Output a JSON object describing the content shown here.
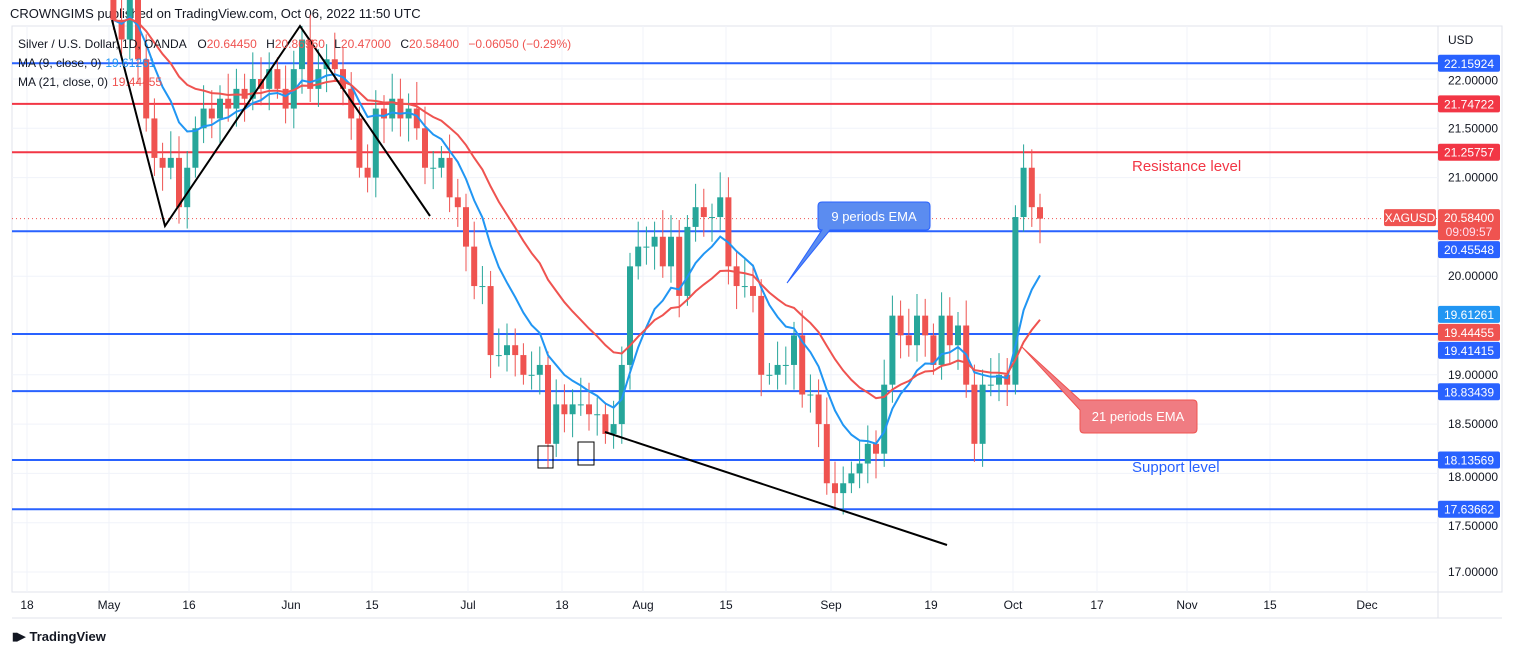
{
  "header": {
    "published": "CROWNGIMS published on TradingView.com, Oct 06, 2022 11:50 UTC"
  },
  "legend": {
    "symbol": "Silver / U.S. Dollar, 1D, OANDA",
    "o_label": "O",
    "o": "20.64450",
    "h_label": "H",
    "h": "20.86960",
    "l_label": "L",
    "l": "20.47000",
    "c_label": "C",
    "c": "20.58400",
    "change": "−0.06050 (−0.29%)",
    "ma9_label": "MA (9, close, 0)",
    "ma9_value": "19.61261",
    "ma21_label": "MA (21, close, 0)",
    "ma21_value": "19.44455"
  },
  "footer": {
    "brand": "TradingView",
    "logo": "17"
  },
  "colors": {
    "up": "#26a69a",
    "down": "#ef5350",
    "level_blue": "#2962ff",
    "level_red": "#f23645",
    "ma9": "#2196f3",
    "ma21": "#ef5350"
  },
  "chart_data": {
    "type": "candlestick",
    "symbol": "XAGUSD",
    "currency": "USD",
    "ylim": [
      16.75,
      22.45
    ],
    "y_ticks": [
      "22.00000",
      "21.50000",
      "21.00000",
      "20.00000",
      "19.00000",
      "18.50000",
      "18.00000",
      "17.50000",
      "17.00000"
    ],
    "y_tick_values": [
      22,
      21.5,
      21,
      20,
      19,
      18.5,
      18,
      17.5,
      17
    ],
    "x_ticks": [
      "18",
      "May",
      "16",
      "Jun",
      "15",
      "Jul",
      "18",
      "Aug",
      "15",
      "Sep",
      "19",
      "Oct",
      "17",
      "Nov",
      "15",
      "Dec"
    ],
    "first_open": 22.9,
    "close": [
      22.6,
      22.4,
      22.9,
      22.2,
      21.6,
      21.2,
      21.1,
      21.2,
      20.7,
      21.1,
      21.5,
      21.7,
      21.6,
      21.8,
      21.7,
      21.9,
      21.8,
      22.0,
      21.9,
      22.1,
      21.9,
      21.7,
      22.1,
      22.4,
      21.9,
      22.1,
      22.2,
      22.1,
      21.9,
      21.6,
      21.1,
      21.0,
      21.7,
      21.6,
      21.8,
      21.6,
      21.7,
      21.5,
      21.1,
      21.1,
      21.2,
      20.8,
      20.7,
      20.3,
      19.9,
      19.9,
      19.2,
      19.2,
      19.3,
      19.2,
      19.0,
      19.0,
      19.1,
      18.3,
      18.7,
      18.6,
      18.7,
      18.7,
      18.6,
      18.6,
      18.4,
      18.5,
      19.1,
      20.1,
      20.3,
      20.3,
      20.4,
      20.1,
      20.4,
      19.8,
      20.5,
      20.7,
      20.6,
      20.6,
      20.8,
      20.1,
      19.9,
      19.9,
      19.8,
      19.0,
      19.0,
      19.1,
      19.1,
      19.4,
      18.8,
      18.8,
      18.5,
      17.9,
      17.8,
      17.9,
      18.0,
      18.1,
      18.3,
      18.2,
      18.9,
      19.6,
      19.4,
      19.3,
      19.6,
      19.4,
      19.1,
      19.6,
      19.3,
      19.5,
      18.9,
      18.3,
      18.9,
      18.9,
      19.0,
      18.9,
      20.6,
      21.1,
      20.7,
      20.584
    ],
    "levels": [
      {
        "value": 22.15924,
        "label": "22.15924",
        "color": "blue"
      },
      {
        "value": 21.74722,
        "label": "21.74722",
        "color": "red"
      },
      {
        "value": 21.25757,
        "label": "21.25757",
        "color": "red"
      },
      {
        "value": 20.45548,
        "label": "20.45548",
        "color": "blue"
      },
      {
        "value": 19.41415,
        "label": "19.41415",
        "color": "blue"
      },
      {
        "value": 18.83439,
        "label": "18.83439",
        "color": "blue"
      },
      {
        "value": 18.13569,
        "label": "18.13569",
        "color": "blue"
      },
      {
        "value": 17.63662,
        "label": "17.63662",
        "color": "blue"
      }
    ],
    "ma_labels": [
      {
        "label": "19.61261",
        "color": "ma9",
        "value": 19.61261
      },
      {
        "label": "19.44455",
        "color": "ma21",
        "value": 19.44455
      }
    ],
    "last_price": {
      "value": 20.584,
      "label": "20.58400",
      "countdown": "09:09:57",
      "tag": "XAGUSD"
    },
    "annotations": {
      "resistance": "Resistance level",
      "support": "Support level",
      "ema9": "9 periods EMA",
      "ema21": "21 periods EMA"
    }
  }
}
